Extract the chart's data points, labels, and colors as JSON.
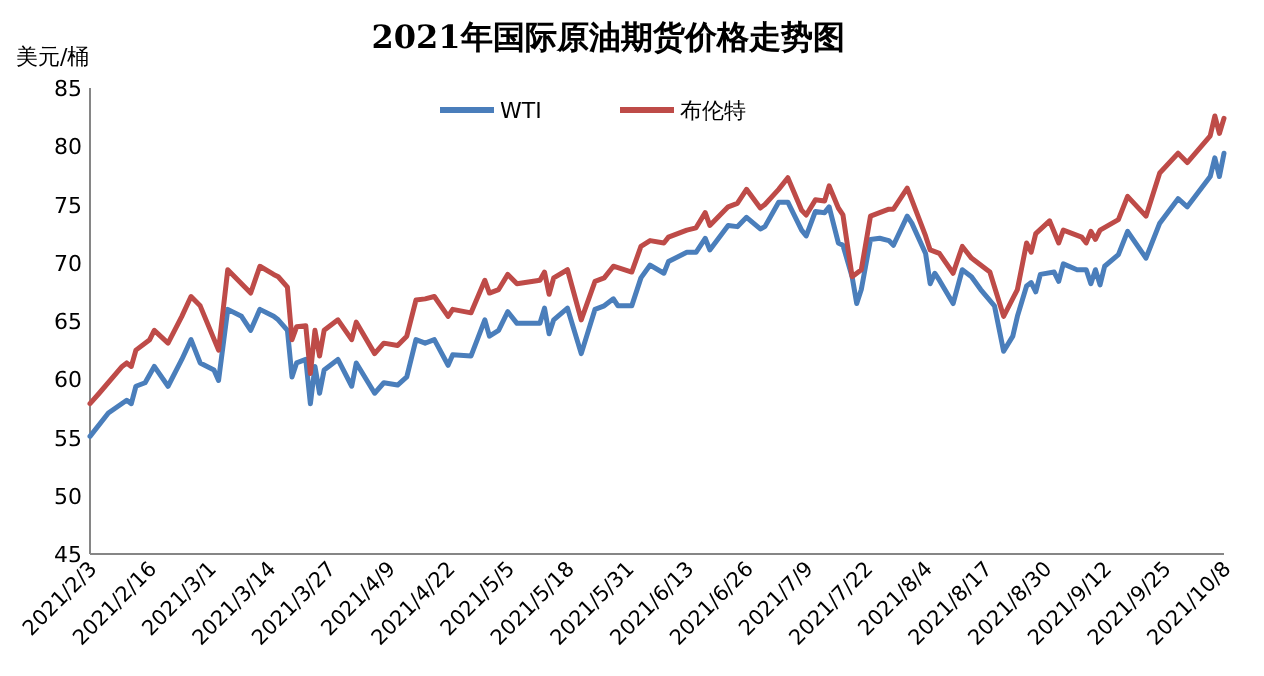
{
  "chart_data": {
    "type": "line",
    "title": "2021年国际原油期货价格走势图",
    "ylabel": "美元/桶",
    "xlim": [
      "2021-02-03",
      "2021-10-08"
    ],
    "xticks": [
      {
        "value": "2021-02-03",
        "label": "2021/2/3"
      },
      {
        "value": "2021-02-16",
        "label": "2021/2/16"
      },
      {
        "value": "2021-03-01",
        "label": "2021/3/1"
      },
      {
        "value": "2021-03-14",
        "label": "2021/3/14"
      },
      {
        "value": "2021-03-27",
        "label": "2021/3/27"
      },
      {
        "value": "2021-04-09",
        "label": "2021/4/9"
      },
      {
        "value": "2021-04-22",
        "label": "2021/4/22"
      },
      {
        "value": "2021-05-05",
        "label": "2021/5/5"
      },
      {
        "value": "2021-05-18",
        "label": "2021/5/18"
      },
      {
        "value": "2021-05-31",
        "label": "2021/5/31"
      },
      {
        "value": "2021-06-13",
        "label": "2021/6/13"
      },
      {
        "value": "2021-06-26",
        "label": "2021/6/26"
      },
      {
        "value": "2021-07-09",
        "label": "2021/7/9"
      },
      {
        "value": "2021-07-22",
        "label": "2021/7/22"
      },
      {
        "value": "2021-08-04",
        "label": "2021/8/4"
      },
      {
        "value": "2021-08-17",
        "label": "2021/8/17"
      },
      {
        "value": "2021-08-30",
        "label": "2021/8/30"
      },
      {
        "value": "2021-09-12",
        "label": "2021/9/12"
      },
      {
        "value": "2021-09-25",
        "label": "2021/9/25"
      },
      {
        "value": "2021-10-08",
        "label": "2021/10/8"
      }
    ],
    "ylim": [
      45,
      85
    ],
    "yticks": [
      45,
      50,
      55,
      60,
      65,
      70,
      75,
      80,
      85
    ],
    "grid": false,
    "legend": "top",
    "marker": "none",
    "line_style": "solid",
    "series": [
      {
        "name": "WTI",
        "color": "#4a7ebb",
        "x": [
          "2021-02-03",
          "2021-02-07",
          "2021-02-11",
          "2021-02-12",
          "2021-02-13",
          "2021-02-15",
          "2021-02-17",
          "2021-02-20",
          "2021-02-23",
          "2021-02-25",
          "2021-02-27",
          "2021-03-02",
          "2021-03-03",
          "2021-03-05",
          "2021-03-08",
          "2021-03-10",
          "2021-03-12",
          "2021-03-15",
          "2021-03-16",
          "2021-03-18",
          "2021-03-19",
          "2021-03-20",
          "2021-03-22",
          "2021-03-23",
          "2021-03-24",
          "2021-03-25",
          "2021-03-26",
          "2021-03-29",
          "2021-04-01",
          "2021-04-02",
          "2021-04-06",
          "2021-04-08",
          "2021-04-11",
          "2021-04-13",
          "2021-04-15",
          "2021-04-17",
          "2021-04-19",
          "2021-04-22",
          "2021-04-23",
          "2021-04-27",
          "2021-04-30",
          "2021-05-01",
          "2021-05-03",
          "2021-05-05",
          "2021-05-07",
          "2021-05-12",
          "2021-05-13",
          "2021-05-14",
          "2021-05-15",
          "2021-05-18",
          "2021-05-21",
          "2021-05-24",
          "2021-05-26",
          "2021-05-28",
          "2021-05-29",
          "2021-06-01",
          "2021-06-03",
          "2021-06-05",
          "2021-06-08",
          "2021-06-09",
          "2021-06-13",
          "2021-06-15",
          "2021-06-17",
          "2021-06-18",
          "2021-06-22",
          "2021-06-24",
          "2021-06-26",
          "2021-06-29",
          "2021-06-30",
          "2021-07-03",
          "2021-07-05",
          "2021-07-08",
          "2021-07-09",
          "2021-07-11",
          "2021-07-13",
          "2021-07-14",
          "2021-07-16",
          "2021-07-17",
          "2021-07-19",
          "2021-07-20",
          "2021-07-21",
          "2021-07-23",
          "2021-07-25",
          "2021-07-27",
          "2021-07-28",
          "2021-07-31",
          "2021-08-01",
          "2021-08-04",
          "2021-08-05",
          "2021-08-06",
          "2021-08-07",
          "2021-08-10",
          "2021-08-12",
          "2021-08-14",
          "2021-08-16",
          "2021-08-19",
          "2021-08-21",
          "2021-08-23",
          "2021-08-24",
          "2021-08-26",
          "2021-08-27",
          "2021-08-28",
          "2021-08-29",
          "2021-09-01",
          "2021-09-02",
          "2021-09-03",
          "2021-09-06",
          "2021-09-08",
          "2021-09-09",
          "2021-09-10",
          "2021-09-11",
          "2021-09-12",
          "2021-09-15",
          "2021-09-17",
          "2021-09-21",
          "2021-09-24",
          "2021-09-28",
          "2021-09-30",
          "2021-10-05",
          "2021-10-06",
          "2021-10-07",
          "2021-10-08"
        ],
        "values": [
          55.1,
          57.1,
          58.2,
          57.9,
          59.4,
          59.7,
          61.1,
          59.4,
          61.7,
          63.4,
          61.4,
          60.8,
          59.9,
          66.0,
          65.4,
          64.2,
          66.0,
          65.4,
          65.1,
          64.2,
          60.2,
          61.4,
          61.7,
          57.9,
          61.1,
          58.8,
          60.8,
          61.7,
          59.4,
          61.4,
          58.8,
          59.7,
          59.5,
          60.2,
          63.4,
          63.1,
          63.4,
          61.2,
          62.1,
          62.0,
          65.1,
          63.7,
          64.2,
          65.8,
          64.8,
          64.8,
          66.1,
          63.9,
          65.1,
          66.1,
          62.2,
          66.0,
          66.3,
          66.9,
          66.3,
          66.3,
          68.7,
          69.8,
          69.1,
          70.1,
          70.9,
          70.9,
          72.1,
          71.1,
          73.2,
          73.1,
          73.9,
          72.9,
          73.1,
          75.2,
          75.2,
          72.8,
          72.3,
          74.4,
          74.3,
          74.8,
          71.7,
          71.5,
          68.8,
          66.5,
          67.7,
          72.0,
          72.1,
          71.9,
          71.5,
          74.0,
          73.4,
          70.8,
          68.2,
          69.1,
          68.5,
          66.5,
          69.4,
          68.8,
          67.7,
          66.3,
          62.4,
          63.7,
          65.4,
          68.0,
          68.3,
          67.5,
          69.0,
          69.2,
          68.4,
          69.9,
          69.4,
          69.4,
          68.2,
          69.4,
          68.1,
          69.7,
          70.7,
          72.7,
          70.4,
          73.4,
          75.5,
          74.8,
          77.4,
          79.0,
          77.4,
          79.4
        ]
      },
      {
        "name": "布伦特",
        "color": "#be4b48",
        "x": [
          "2021-02-03",
          "2021-02-05",
          "2021-02-10",
          "2021-02-11",
          "2021-02-12",
          "2021-02-13",
          "2021-02-16",
          "2021-02-17",
          "2021-02-20",
          "2021-02-23",
          "2021-02-25",
          "2021-02-27",
          "2021-03-03",
          "2021-03-05",
          "2021-03-10",
          "2021-03-12",
          "2021-03-15",
          "2021-03-16",
          "2021-03-18",
          "2021-03-19",
          "2021-03-20",
          "2021-03-22",
          "2021-03-23",
          "2021-03-24",
          "2021-03-25",
          "2021-03-26",
          "2021-03-29",
          "2021-04-01",
          "2021-04-02",
          "2021-04-06",
          "2021-04-08",
          "2021-04-11",
          "2021-04-13",
          "2021-04-15",
          "2021-04-17",
          "2021-04-19",
          "2021-04-22",
          "2021-04-23",
          "2021-04-27",
          "2021-04-30",
          "2021-05-01",
          "2021-05-03",
          "2021-05-05",
          "2021-05-07",
          "2021-05-12",
          "2021-05-13",
          "2021-05-14",
          "2021-05-15",
          "2021-05-18",
          "2021-05-21",
          "2021-05-24",
          "2021-05-26",
          "2021-05-28",
          "2021-06-01",
          "2021-06-03",
          "2021-06-05",
          "2021-06-08",
          "2021-06-09",
          "2021-06-13",
          "2021-06-15",
          "2021-06-17",
          "2021-06-18",
          "2021-06-22",
          "2021-06-24",
          "2021-06-26",
          "2021-06-29",
          "2021-06-30",
          "2021-07-03",
          "2021-07-05",
          "2021-07-08",
          "2021-07-09",
          "2021-07-11",
          "2021-07-13",
          "2021-07-14",
          "2021-07-16",
          "2021-07-17",
          "2021-07-19",
          "2021-07-21",
          "2021-07-23",
          "2021-07-27",
          "2021-07-28",
          "2021-07-31",
          "2021-08-01",
          "2021-08-04",
          "2021-08-05",
          "2021-08-07",
          "2021-08-10",
          "2021-08-12",
          "2021-08-14",
          "2021-08-18",
          "2021-08-21",
          "2021-08-24",
          "2021-08-26",
          "2021-08-27",
          "2021-08-28",
          "2021-08-31",
          "2021-09-02",
          "2021-09-03",
          "2021-09-07",
          "2021-09-08",
          "2021-09-09",
          "2021-09-10",
          "2021-09-11",
          "2021-09-15",
          "2021-09-17",
          "2021-09-21",
          "2021-09-24",
          "2021-09-28",
          "2021-09-30",
          "2021-10-05",
          "2021-10-06",
          "2021-10-07",
          "2021-10-08"
        ],
        "values": [
          57.9,
          58.8,
          61.1,
          61.4,
          61.1,
          62.5,
          63.4,
          64.2,
          63.1,
          65.4,
          67.1,
          66.3,
          62.5,
          69.4,
          67.4,
          69.7,
          69.0,
          68.8,
          67.9,
          63.4,
          64.5,
          64.6,
          60.5,
          64.2,
          62.0,
          64.2,
          65.1,
          63.4,
          64.9,
          62.2,
          63.1,
          62.9,
          63.7,
          66.8,
          66.9,
          67.1,
          65.4,
          66.0,
          65.7,
          68.5,
          67.4,
          67.7,
          69.0,
          68.2,
          68.5,
          69.2,
          67.3,
          68.7,
          69.4,
          65.1,
          68.4,
          68.7,
          69.7,
          69.2,
          71.4,
          71.9,
          71.7,
          72.2,
          72.8,
          73.0,
          74.3,
          73.2,
          74.8,
          75.1,
          76.3,
          74.7,
          75.0,
          76.3,
          77.3,
          74.5,
          74.1,
          75.4,
          75.3,
          76.6,
          74.7,
          74.1,
          68.8,
          69.4,
          74.0,
          74.6,
          74.6,
          76.4,
          75.4,
          72.3,
          71.1,
          70.8,
          69.1,
          71.4,
          70.4,
          69.2,
          65.4,
          67.7,
          71.7,
          70.9,
          72.5,
          73.6,
          71.7,
          72.8,
          72.2,
          71.7,
          72.7,
          72.0,
          72.8,
          73.7,
          75.7,
          74.0,
          77.7,
          79.4,
          78.6,
          80.9,
          82.6,
          81.1,
          82.4
        ]
      }
    ]
  }
}
